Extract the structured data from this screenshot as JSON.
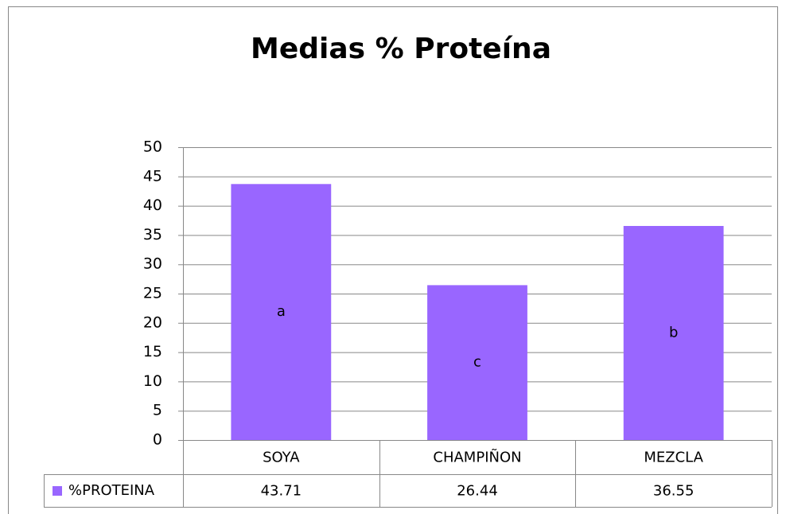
{
  "chart_data": {
    "type": "bar",
    "title": "Medias % Proteína",
    "categories": [
      "SOYA",
      "CHAMPIÑON",
      "MEZCLA"
    ],
    "series": [
      {
        "name": "%PROTEINA",
        "color": "#9966ff",
        "values": [
          43.71,
          26.44,
          36.55
        ]
      }
    ],
    "annotations": [
      "a",
      "c",
      "b"
    ],
    "ylim": [
      0,
      50
    ],
    "yticks": [
      0,
      5,
      10,
      15,
      20,
      25,
      30,
      35,
      40,
      45,
      50
    ],
    "grid": true,
    "data_table": true
  }
}
